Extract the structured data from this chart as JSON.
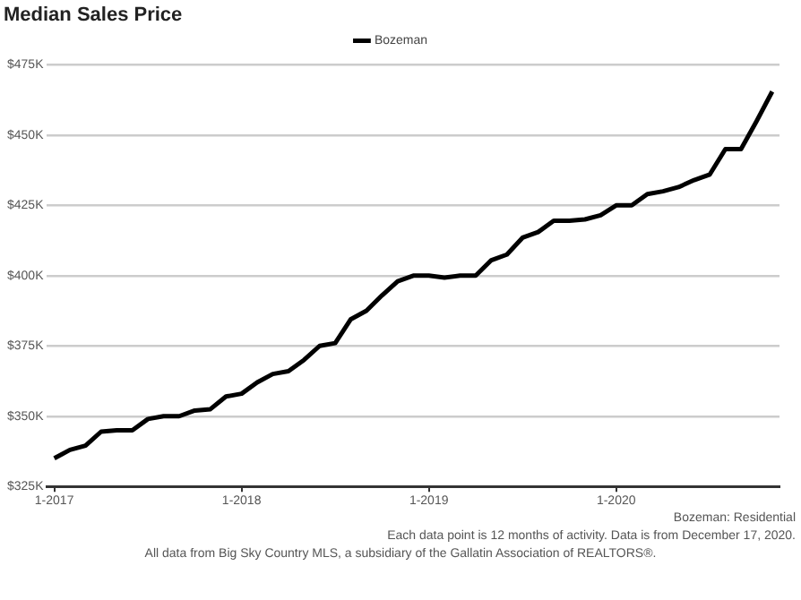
{
  "chart_data": {
    "type": "line",
    "title": "Median Sales Price",
    "x": [
      "2017-01",
      "2017-02",
      "2017-03",
      "2017-04",
      "2017-05",
      "2017-06",
      "2017-07",
      "2017-08",
      "2017-09",
      "2017-10",
      "2017-11",
      "2017-12",
      "2018-01",
      "2018-02",
      "2018-03",
      "2018-04",
      "2018-05",
      "2018-06",
      "2018-07",
      "2018-08",
      "2018-09",
      "2018-10",
      "2018-11",
      "2018-12",
      "2019-01",
      "2019-02",
      "2019-03",
      "2019-04",
      "2019-05",
      "2019-06",
      "2019-07",
      "2019-08",
      "2019-09",
      "2019-10",
      "2019-11",
      "2019-12",
      "2020-01",
      "2020-02",
      "2020-03",
      "2020-04",
      "2020-05",
      "2020-06",
      "2020-07",
      "2020-08",
      "2020-09",
      "2020-10",
      "2020-11"
    ],
    "series": [
      {
        "name": "Bozeman",
        "color": "#000000",
        "values": [
          335,
          338,
          339.5,
          344.5,
          345,
          345,
          349,
          350,
          350,
          352,
          352.5,
          357,
          358,
          362,
          365,
          366,
          370,
          375,
          376,
          384.5,
          387.5,
          393,
          398,
          400,
          400,
          399.3,
          400,
          400,
          405.5,
          407.5,
          413.5,
          415.5,
          419.5,
          419.5,
          420,
          421.5,
          425,
          425,
          429,
          430,
          431.5,
          434,
          436,
          445,
          445,
          455,
          465.5
        ]
      }
    ],
    "xlim": [
      "2016-12-17",
      "2020-11-15"
    ],
    "xticks": [
      {
        "value": "2017-01",
        "label": "1-2017"
      },
      {
        "value": "2018-01",
        "label": "1-2018"
      },
      {
        "value": "2019-01",
        "label": "1-2019"
      },
      {
        "value": "2020-01",
        "label": "1-2020"
      }
    ],
    "ylim": [
      325,
      475
    ],
    "yticks": [
      {
        "value": 325,
        "label": "$325K"
      },
      {
        "value": 350,
        "label": "$350K"
      },
      {
        "value": 375,
        "label": "$375K"
      },
      {
        "value": 400,
        "label": "$400K"
      },
      {
        "value": 425,
        "label": "$425K"
      },
      {
        "value": 450,
        "label": "$450K"
      },
      {
        "value": 475,
        "label": "$475K"
      }
    ],
    "grid": "y",
    "legend": "top",
    "marker": "none",
    "line_style": "solid",
    "annotations": [
      "Bozeman: Residential",
      "Each data point is 12 months of activity. Data is from December 17, 2020.",
      "All data from Big Sky Country MLS, a subsidiary of the Gallatin Association of REALTORS®."
    ]
  }
}
